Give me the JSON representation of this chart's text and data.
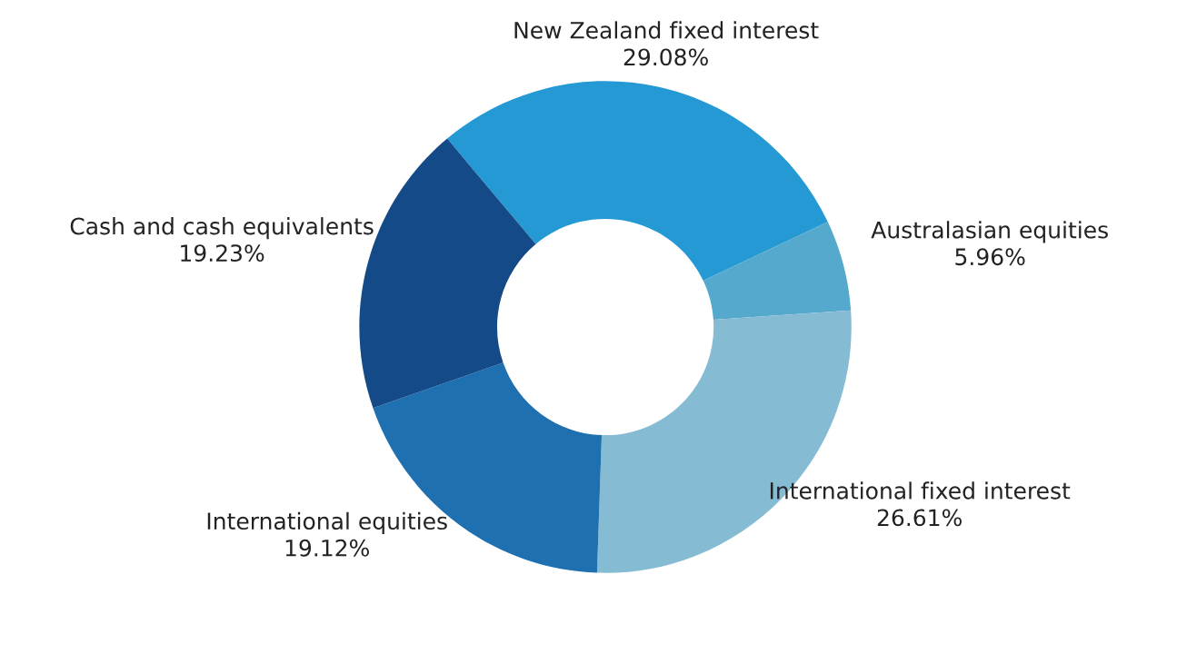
{
  "chart_data": {
    "type": "donut",
    "categories": [
      "New Zealand fixed interest",
      "Australasian equities",
      "International fixed interest",
      "International equities",
      "Cash and cash equivalents"
    ],
    "values": [
      29.08,
      5.96,
      26.61,
      19.12,
      19.23
    ],
    "value_labels": [
      "29.08%",
      "5.96%",
      "26.61%",
      "19.12%",
      "19.23%"
    ],
    "colors": [
      "#2499d4",
      "#55a9cc",
      "#85bcd4",
      "#1f70b0",
      "#134a87"
    ],
    "legend": false
  }
}
